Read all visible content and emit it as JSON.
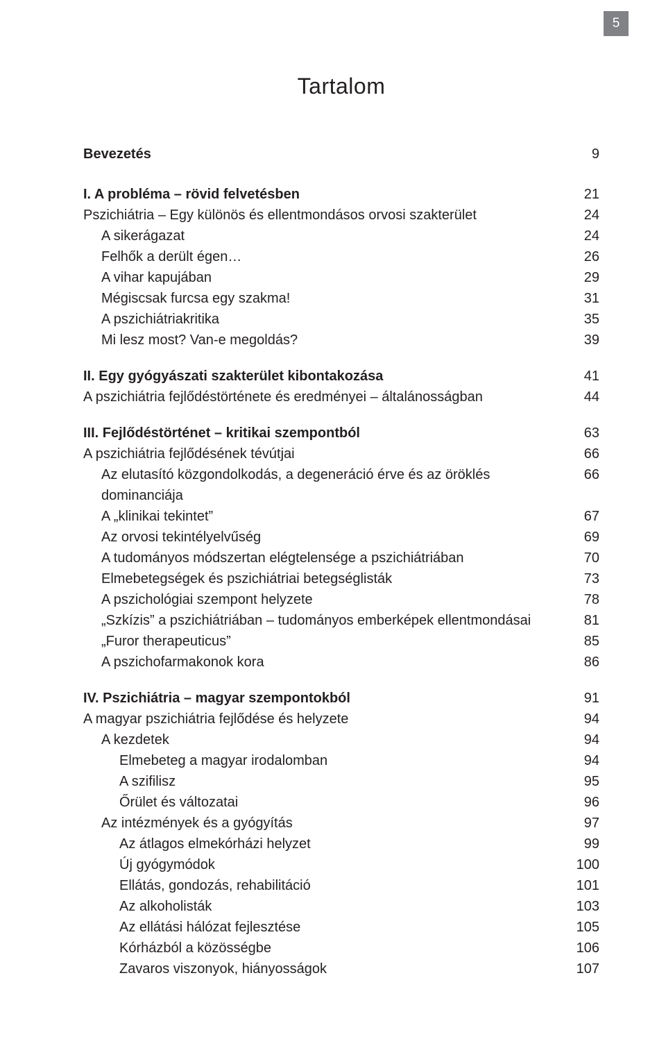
{
  "page_number": "5",
  "title": "Tartalom",
  "font": {
    "body_size_pt": 15,
    "title_size_pt": 24,
    "color": "#231f20",
    "badge_bg": "#808285",
    "badge_fg": "#ffffff"
  },
  "entries": [
    {
      "label": "Bevezetés",
      "page": "9",
      "bold": true,
      "indent": 0,
      "gap": false
    },
    {
      "label": "I. A probléma – rövid felvetésben",
      "page": "21",
      "bold": true,
      "indent": 0,
      "gap": true
    },
    {
      "label": "Pszichiátria – Egy különös és ellentmondásos orvosi szakterület",
      "page": "24",
      "bold": false,
      "indent": 0,
      "gap": false
    },
    {
      "label": "A sikerágazat",
      "page": "24",
      "bold": false,
      "indent": 1,
      "gap": false
    },
    {
      "label": "Felhők a derült égen…",
      "page": "26",
      "bold": false,
      "indent": 1,
      "gap": false
    },
    {
      "label": "A vihar kapujában",
      "page": "29",
      "bold": false,
      "indent": 1,
      "gap": false
    },
    {
      "label": "Mégiscsak furcsa egy szakma!",
      "page": "31",
      "bold": false,
      "indent": 1,
      "gap": false
    },
    {
      "label": "A pszichiátriakritika",
      "page": "35",
      "bold": false,
      "indent": 1,
      "gap": false
    },
    {
      "label": "Mi lesz most? Van-e megoldás?",
      "page": "39",
      "bold": false,
      "indent": 1,
      "gap": false
    },
    {
      "label": "II. Egy gyógyászati szakterület kibontakozása",
      "page": "41",
      "bold": true,
      "indent": 0,
      "gap": true
    },
    {
      "label": "A pszichiátria fejlődéstörténete és eredményei – általánosságban",
      "page": "44",
      "bold": false,
      "indent": 0,
      "gap": false
    },
    {
      "label": "III. Fejlődéstörténet – kritikai szempontból",
      "page": "63",
      "bold": true,
      "indent": 0,
      "gap": true
    },
    {
      "label": "A pszichiátria fejlődésének tévútjai",
      "page": "66",
      "bold": false,
      "indent": 0,
      "gap": false
    },
    {
      "label": "Az elutasító közgondolkodás, a degeneráció érve és az öröklés dominanciája",
      "page": "66",
      "bold": false,
      "indent": 1,
      "gap": false
    },
    {
      "label": "A „klinikai tekintet”",
      "page": "67",
      "bold": false,
      "indent": 1,
      "gap": false
    },
    {
      "label": "Az orvosi tekintélyelvűség",
      "page": "69",
      "bold": false,
      "indent": 1,
      "gap": false
    },
    {
      "label": "A tudományos módszertan elégtelensége a pszichiátriában",
      "page": "70",
      "bold": false,
      "indent": 1,
      "gap": false
    },
    {
      "label": "Elmebetegségek és pszichiátriai betegséglisták",
      "page": "73",
      "bold": false,
      "indent": 1,
      "gap": false
    },
    {
      "label": "A pszichológiai szempont helyzete",
      "page": "78",
      "bold": false,
      "indent": 1,
      "gap": false
    },
    {
      "label": "„Szkízis” a pszichiátriában – tudományos emberképek ellentmondásai",
      "page": "81",
      "bold": false,
      "indent": 1,
      "gap": false
    },
    {
      "label": "„Furor therapeuticus”",
      "page": "85",
      "bold": false,
      "indent": 1,
      "gap": false
    },
    {
      "label": "A pszichofarmakonok kora",
      "page": "86",
      "bold": false,
      "indent": 1,
      "gap": false
    },
    {
      "label": "IV. Pszichiátria – magyar szempontokból",
      "page": "91",
      "bold": true,
      "indent": 0,
      "gap": true
    },
    {
      "label": "A magyar pszichiátria fejlődése és helyzete",
      "page": "94",
      "bold": false,
      "indent": 0,
      "gap": false
    },
    {
      "label": "A kezdetek",
      "page": "94",
      "bold": false,
      "indent": 1,
      "gap": false
    },
    {
      "label": "Elmebeteg a magyar irodalomban",
      "page": "94",
      "bold": false,
      "indent": 2,
      "gap": false
    },
    {
      "label": "A szifilisz",
      "page": "95",
      "bold": false,
      "indent": 2,
      "gap": false
    },
    {
      "label": "Őrület és változatai",
      "page": "96",
      "bold": false,
      "indent": 2,
      "gap": false
    },
    {
      "label": "Az intézmények és a gyógyítás",
      "page": "97",
      "bold": false,
      "indent": 1,
      "gap": false
    },
    {
      "label": "Az átlagos elmekórházi helyzet",
      "page": "99",
      "bold": false,
      "indent": 2,
      "gap": false
    },
    {
      "label": "Új gyógymódok",
      "page": "100",
      "bold": false,
      "indent": 2,
      "gap": false
    },
    {
      "label": "Ellátás, gondozás, rehabilitáció",
      "page": "101",
      "bold": false,
      "indent": 2,
      "gap": false
    },
    {
      "label": "Az alkoholisták",
      "page": "103",
      "bold": false,
      "indent": 2,
      "gap": false
    },
    {
      "label": "Az ellátási hálózat fejlesztése",
      "page": "105",
      "bold": false,
      "indent": 2,
      "gap": false
    },
    {
      "label": "Kórházból a közösségbe",
      "page": "106",
      "bold": false,
      "indent": 2,
      "gap": false
    },
    {
      "label": "Zavaros viszonyok, hiányosságok",
      "page": "107",
      "bold": false,
      "indent": 2,
      "gap": false
    }
  ]
}
